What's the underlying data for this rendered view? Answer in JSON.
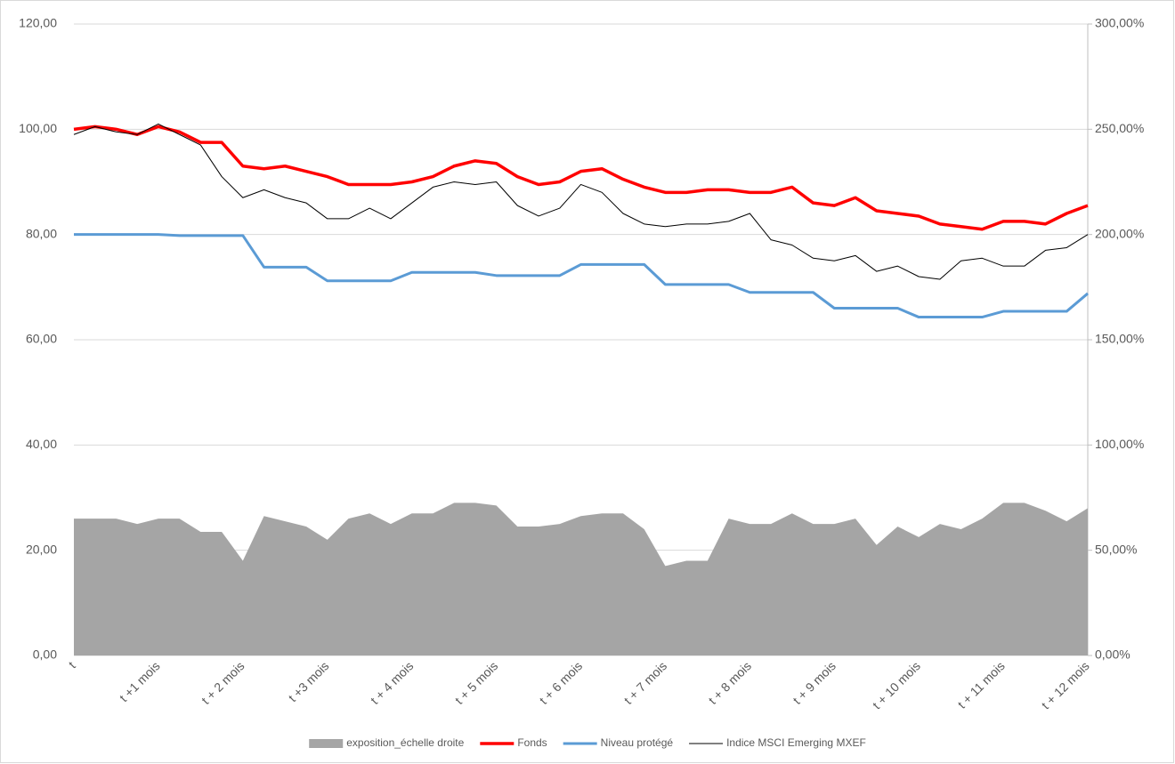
{
  "chart_data": {
    "type": "line",
    "categories": [
      "t",
      null,
      null,
      null,
      "t +1 mois",
      null,
      null,
      null,
      "t + 2 mois",
      null,
      null,
      null,
      "t +3 mois",
      null,
      null,
      null,
      "t + 4 mois",
      null,
      null,
      null,
      "t + 5 mois",
      null,
      null,
      null,
      "t + 6 mois",
      null,
      null,
      null,
      "t + 7 mois",
      null,
      null,
      null,
      "t + 8 mois",
      null,
      null,
      null,
      "t + 9 mois",
      null,
      null,
      null,
      "t + 10 mois",
      null,
      null,
      null,
      "t + 11 mois",
      null,
      null,
      null,
      "t + 12 mois"
    ],
    "series": [
      {
        "name": "exposition_échelle droite",
        "type": "area",
        "axis": "y2",
        "color": "#a5a5a5",
        "values": [
          65,
          65,
          65,
          62.5,
          65,
          65,
          58.75,
          58.75,
          45,
          66.25,
          63.75,
          61.25,
          55,
          65,
          67.5,
          62.5,
          67.5,
          67.5,
          72.5,
          72.5,
          71.25,
          61.25,
          61.25,
          62.5,
          66.25,
          67.5,
          67.5,
          60,
          42.5,
          45,
          45,
          65,
          62.5,
          62.5,
          67.5,
          62.5,
          62.5,
          65,
          52.5,
          61.25,
          56.25,
          62.5,
          60,
          65,
          72.5,
          72.5,
          68.75,
          63.75,
          70
        ]
      },
      {
        "name": "Fonds",
        "type": "line",
        "color": "#ff0000",
        "values": [
          100,
          100.5,
          100,
          99,
          100.5,
          99.5,
          97.5,
          97.5,
          93,
          92.5,
          93,
          92,
          91,
          89.5,
          89.5,
          89.5,
          90,
          91,
          93,
          94,
          93.5,
          91,
          89.5,
          90,
          92,
          92.5,
          90.5,
          89,
          88,
          88,
          88.5,
          88.5,
          88,
          88,
          89,
          86,
          85.5,
          87,
          84.5,
          84,
          83.5,
          82,
          81.5,
          81,
          82.5,
          82.5,
          82,
          84,
          85.5
        ]
      },
      {
        "name": "Niveau protégé",
        "type": "line",
        "color": "#5b9bd5",
        "values": [
          80,
          80,
          80,
          80,
          80,
          79.8,
          79.8,
          79.8,
          79.8,
          73.8,
          73.8,
          73.8,
          71.2,
          71.2,
          71.2,
          71.2,
          72.8,
          72.8,
          72.8,
          72.8,
          72.2,
          72.2,
          72.2,
          72.2,
          74.3,
          74.3,
          74.3,
          74.3,
          70.5,
          70.5,
          70.5,
          70.5,
          69,
          69,
          69,
          69,
          66,
          66,
          66,
          66,
          64.3,
          64.3,
          64.3,
          64.3,
          65.4,
          65.4,
          65.4,
          65.4,
          68.8
        ]
      },
      {
        "name": "Indice MSCI Emerging MXEF",
        "type": "line",
        "color": "#000000",
        "values": [
          99,
          100.5,
          99.5,
          99,
          101,
          99,
          97,
          91,
          87,
          88.5,
          87,
          86,
          83,
          83,
          85,
          83,
          86,
          89,
          90,
          89.5,
          90,
          85.5,
          83.5,
          85,
          89.5,
          88,
          84,
          82,
          81.5,
          82,
          82,
          82.5,
          84,
          79,
          78,
          75.5,
          75,
          76,
          73,
          74,
          72,
          71.5,
          75,
          75.5,
          74,
          74,
          77,
          77.5,
          80
        ]
      }
    ],
    "ylim": [
      0,
      120
    ],
    "yticks": [
      {
        "value": 0,
        "label": "0,00"
      },
      {
        "value": 20,
        "label": "20,00"
      },
      {
        "value": 40,
        "label": "40,00"
      },
      {
        "value": 60,
        "label": "60,00"
      },
      {
        "value": 80,
        "label": "80,00"
      },
      {
        "value": 100,
        "label": "100,00"
      },
      {
        "value": 120,
        "label": "120,00"
      }
    ],
    "y2lim": [
      0,
      300
    ],
    "y2ticks": [
      {
        "value": 0,
        "label": "0,00%"
      },
      {
        "value": 50,
        "label": "50,00%"
      },
      {
        "value": 100,
        "label": "100,00%"
      },
      {
        "value": 150,
        "label": "150,00%"
      },
      {
        "value": 200,
        "label": "200,00%"
      },
      {
        "value": 250,
        "label": "250,00%"
      },
      {
        "value": 300,
        "label": "300,00%"
      }
    ],
    "grid": true,
    "legend": "bottom"
  }
}
